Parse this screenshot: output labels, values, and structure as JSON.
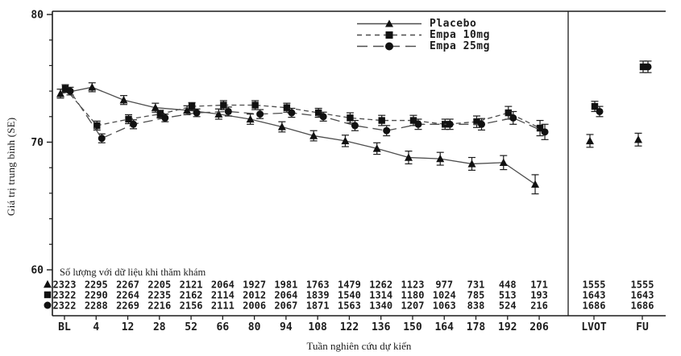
{
  "chart_data": {
    "type": "line",
    "title": "",
    "ylabel": "Giá trị trung bình (SE)",
    "xlabel": "Tuần nghiên cứu dự kiến",
    "counts_header": "Số lượng với dữ liệu khi thăm khám",
    "y_axis": {
      "min": 60,
      "max": 80,
      "major_ticks": [
        80,
        70,
        60
      ],
      "minor_tick_step": 2
    },
    "categories": [
      "BL",
      "4",
      "12",
      "28",
      "52",
      "66",
      "80",
      "94",
      "108",
      "122",
      "136",
      "150",
      "164",
      "178",
      "192",
      "206",
      "LVOT",
      "FU"
    ],
    "main_section_visits": 16,
    "separator_after": "206",
    "legend_position": "top-center",
    "grid": "off",
    "colors": {
      "foreground": "#1c1c1c",
      "line": "#4d4d4d",
      "marker": "#111111"
    },
    "series": [
      {
        "name": "Placebo",
        "marker": "triangle",
        "line_style": "solid",
        "values": [
          73.8,
          74.3,
          73.3,
          72.7,
          72.5,
          72.2,
          71.8,
          71.2,
          70.5,
          70.1,
          69.5,
          68.8,
          68.7,
          68.3,
          68.4,
          66.7,
          70.1,
          70.2
        ],
        "se": [
          0.35,
          0.35,
          0.35,
          0.35,
          0.35,
          0.4,
          0.4,
          0.4,
          0.4,
          0.45,
          0.45,
          0.5,
          0.5,
          0.5,
          0.55,
          0.75,
          0.5,
          0.5
        ],
        "counts": [
          "2323",
          "2295",
          "2267",
          "2205",
          "2121",
          "2064",
          "1927",
          "1981",
          "1763",
          "1479",
          "1262",
          "1123",
          "977",
          "731",
          "448",
          "171",
          "1555",
          "1555"
        ]
      },
      {
        "name": "Empa 10mg",
        "marker": "square",
        "line_style": "dash",
        "values": [
          74.2,
          71.3,
          71.8,
          72.2,
          72.8,
          72.9,
          72.9,
          72.7,
          72.3,
          71.9,
          71.7,
          71.7,
          71.4,
          71.6,
          72.3,
          71.1,
          72.8,
          75.9
        ],
        "se": [
          0.3,
          0.35,
          0.35,
          0.3,
          0.3,
          0.35,
          0.35,
          0.35,
          0.35,
          0.4,
          0.4,
          0.4,
          0.4,
          0.45,
          0.5,
          0.6,
          0.4,
          0.45
        ],
        "counts": [
          "2322",
          "2290",
          "2264",
          "2235",
          "2162",
          "2114",
          "2012",
          "2064",
          "1839",
          "1540",
          "1314",
          "1180",
          "1024",
          "785",
          "513",
          "193",
          "1643",
          "1643"
        ]
      },
      {
        "name": "Empa 25mg",
        "marker": "circle",
        "line_style": "longdash",
        "values": [
          74.0,
          70.3,
          71.4,
          71.9,
          72.3,
          72.4,
          72.2,
          72.3,
          72.0,
          71.3,
          70.9,
          71.4,
          71.4,
          71.4,
          71.9,
          70.8,
          72.4,
          75.9
        ],
        "se": [
          0.3,
          0.35,
          0.35,
          0.3,
          0.3,
          0.35,
          0.35,
          0.35,
          0.35,
          0.4,
          0.4,
          0.4,
          0.4,
          0.45,
          0.5,
          0.6,
          0.4,
          0.45
        ],
        "counts": [
          "2322",
          "2288",
          "2269",
          "2216",
          "2156",
          "2111",
          "2006",
          "2067",
          "1871",
          "1563",
          "1340",
          "1207",
          "1063",
          "838",
          "524",
          "216",
          "1686",
          "1686"
        ]
      }
    ]
  }
}
